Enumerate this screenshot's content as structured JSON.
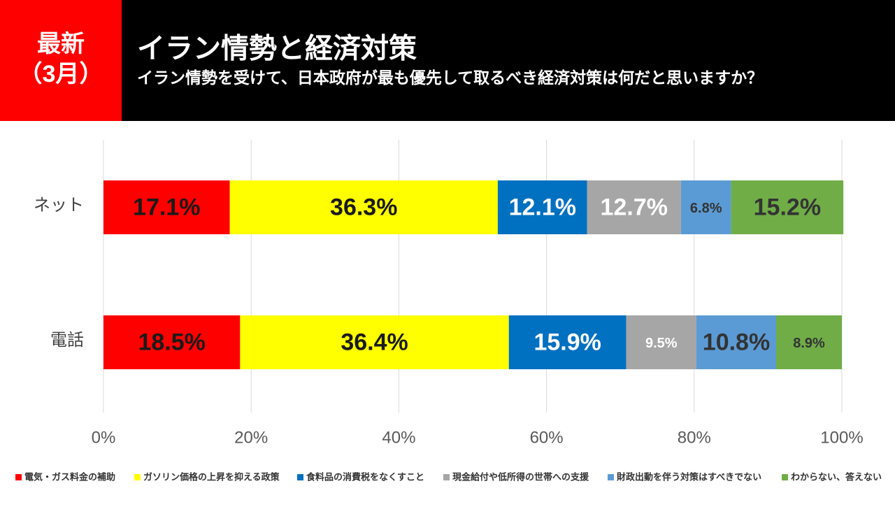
{
  "chart_data": {
    "type": "stacked-bar-horizontal",
    "badge": [
      "最新",
      "（3月）"
    ],
    "title": "イラン情勢と経済対策",
    "subtitle": "イラン情勢を受けて、日本政府が最も優先して取るべき経済対策は何だと思いますか？",
    "categories": [
      "ネット",
      "電話"
    ],
    "series": [
      {
        "name": "電気・ガス料金の補助",
        "color": "#ff0000",
        "label_color": "#1a1a1a",
        "values": [
          17.1,
          18.5
        ],
        "value_labels": [
          "17.1%",
          "18.5%"
        ]
      },
      {
        "name": "ガソリン価格の上昇を抑える政策",
        "color": "#ffff00",
        "label_color": "#1a1a1a",
        "values": [
          36.3,
          36.4
        ],
        "value_labels": [
          "36.3%",
          "36.4%"
        ]
      },
      {
        "name": "食料品の消費税をなくすこと",
        "color": "#0070c0",
        "label_color": "#ffffff",
        "values": [
          12.1,
          15.9
        ],
        "value_labels": [
          "12.1%",
          "15.9%"
        ]
      },
      {
        "name": "現金給付や低所得の世帯への支援",
        "color": "#a6a6a6",
        "label_color": "#ffffff",
        "values": [
          12.7,
          9.5
        ],
        "value_labels": [
          "12.7%",
          "9.5%"
        ]
      },
      {
        "name": "財政出動を伴う対策はすべきでない",
        "color": "#5b9bd5",
        "label_color": "#333333",
        "values": [
          6.8,
          10.8
        ],
        "value_labels": [
          "6.8%",
          "10.8%"
        ]
      },
      {
        "name": "わからない、答えない",
        "color": "#70ad47",
        "label_color": "#333333",
        "values": [
          15.2,
          8.9
        ],
        "value_labels": [
          "15.2%",
          "8.9%"
        ]
      }
    ],
    "xlim": [
      0,
      100
    ],
    "xticks": [
      {
        "value": 0,
        "label": "0%"
      },
      {
        "value": 20,
        "label": "20%"
      },
      {
        "value": 40,
        "label": "40%"
      },
      {
        "value": 60,
        "label": "60%"
      },
      {
        "value": 80,
        "label": "80%"
      },
      {
        "value": 100,
        "label": "100%"
      }
    ],
    "grid": true
  }
}
